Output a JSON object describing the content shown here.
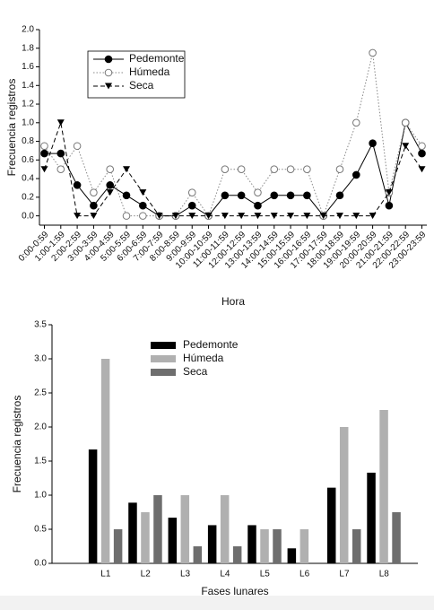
{
  "chart_data": [
    {
      "type": "line",
      "xlabel": "Hora",
      "ylabel": "Frecuencia registros",
      "categories": [
        "0:00-0:59",
        "1:00-1:59",
        "2:00-2:59",
        "3:00-3:59",
        "4:00-4:59",
        "5:00-5:59",
        "6:00-6:59",
        "7:00-7:59",
        "8:00-8:59",
        "9:00-9:59",
        "10:00-10:59",
        "11:00-11:59",
        "12:00-12:59",
        "13:00-13:59",
        "14:00-14:59",
        "15:00-15:59",
        "16:00-16:59",
        "17:00-17:59",
        "18:00-18:59",
        "19:00-19:59",
        "20:00-20:59",
        "21:00-21:59",
        "22:00-22:59",
        "23:00-23:59"
      ],
      "series": [
        {
          "name": "Pedemonte",
          "color": "#000000",
          "marker": "filled-circle",
          "line_style": "solid",
          "values": [
            0.67,
            0.67,
            0.33,
            0.11,
            0.33,
            0.22,
            0.11,
            0,
            0,
            0.11,
            0,
            0.22,
            0.22,
            0.11,
            0.22,
            0.22,
            0.22,
            0,
            0.22,
            0.44,
            0.78,
            0.11,
            1.0,
            0.67
          ]
        },
        {
          "name": "Húmeda",
          "color": "#888888",
          "marker": "open-circle",
          "line_style": "dotted",
          "values": [
            0.75,
            0.5,
            0.75,
            0.25,
            0.5,
            0,
            0,
            0,
            0,
            0.25,
            0,
            0.5,
            0.5,
            0.25,
            0.5,
            0.5,
            0.5,
            0,
            0.5,
            1.0,
            1.75,
            0.25,
            1.0,
            0.75
          ]
        },
        {
          "name": "Seca",
          "color": "#000000",
          "marker": "triangle-down",
          "line_style": "dashed",
          "values": [
            0.5,
            1.0,
            0,
            0,
            0.25,
            0.5,
            0.25,
            0,
            0,
            0,
            0,
            0,
            0,
            0,
            0,
            0,
            0,
            0,
            0,
            0,
            0,
            0.25,
            0.75,
            0.5
          ]
        }
      ],
      "ylim": [
        -0.1,
        2.0
      ],
      "yticks": [
        {
          "value": 0,
          "label": "0.0"
        },
        0.2,
        0.4,
        0.6,
        0.8,
        {
          "value": 1,
          "label": "1.0"
        },
        1.2,
        1.4,
        1.6,
        1.8,
        {
          "value": 2,
          "label": "2.0"
        }
      ],
      "legend": "upper-left"
    },
    {
      "type": "bar",
      "xlabel": "Fases lunares",
      "ylabel": "Frecuencia registros",
      "categories": [
        "L1",
        "L2",
        "L3",
        "L4",
        "L5",
        "L6",
        "L7",
        "L8"
      ],
      "series": [
        {
          "name": "Pedemonte",
          "color": "#000000",
          "values": [
            1.67,
            0.89,
            0.67,
            0.56,
            0.56,
            0.22,
            1.11,
            1.33
          ]
        },
        {
          "name": "Húmeda",
          "color": "#b0b0b0",
          "values": [
            3.0,
            0.75,
            1.0,
            1.0,
            0.5,
            0.5,
            2.0,
            2.25
          ]
        },
        {
          "name": "Seca",
          "color": "#6e6e6e",
          "values": [
            0.5,
            1.0,
            0.25,
            0.25,
            0.5,
            0,
            0.5,
            0.75
          ]
        }
      ],
      "ylim": [
        0,
        3.5
      ],
      "yticks": [
        {
          "value": 0,
          "label": "0.0"
        },
        0.5,
        {
          "value": 1,
          "label": "1.0"
        },
        1.5,
        {
          "value": 2,
          "label": "2.0"
        },
        2.5,
        {
          "value": 3,
          "label": "3.0"
        },
        3.5
      ],
      "legend": "upper-left"
    }
  ]
}
